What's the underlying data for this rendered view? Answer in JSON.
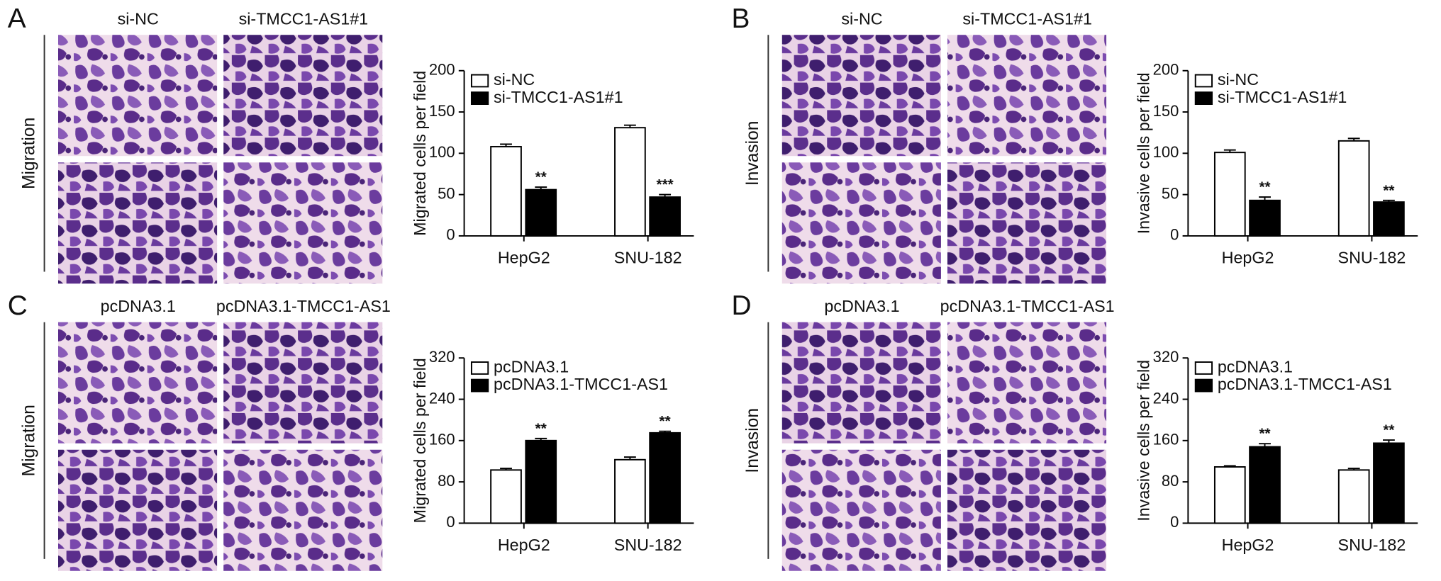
{
  "panels": [
    {
      "letter": "A",
      "image_columns": [
        "si-NC",
        "si-TMCC1-AS1#1"
      ],
      "row_label": "Migration"
    },
    {
      "letter": "B",
      "image_columns": [
        "si-NC",
        "si-TMCC1-AS1#1"
      ],
      "row_label": "Invasion"
    },
    {
      "letter": "C",
      "image_columns": [
        "pcDNA3.1",
        "pcDNA3.1-TMCC1-AS1"
      ],
      "row_label": "Migration"
    },
    {
      "letter": "D",
      "image_columns": [
        "pcDNA3.1",
        "pcDNA3.1-TMCC1-AS1"
      ],
      "row_label": "Invasion"
    }
  ],
  "chart_data": [
    {
      "type": "bar",
      "y_label": "Migrated cells per field",
      "categories": [
        "HepG2",
        "SNU-182"
      ],
      "ylim": [
        0,
        200
      ],
      "yticks": [
        0,
        50,
        100,
        150,
        200
      ],
      "series": [
        {
          "name": "si-NC",
          "color": "#ffffff",
          "values": [
            108,
            131
          ],
          "errors": [
            3,
            3
          ]
        },
        {
          "name": "si-TMCC1-AS1#1",
          "color": "#000000",
          "values": [
            56,
            47
          ],
          "errors": [
            3,
            3
          ],
          "significance": [
            "**",
            "***"
          ]
        }
      ]
    },
    {
      "type": "bar",
      "y_label": "Invasive cells per field",
      "categories": [
        "HepG2",
        "SNU-182"
      ],
      "ylim": [
        0,
        200
      ],
      "yticks": [
        0,
        50,
        100,
        150,
        200
      ],
      "series": [
        {
          "name": "si-NC",
          "color": "#ffffff",
          "values": [
            101,
            115
          ],
          "errors": [
            3,
            3
          ]
        },
        {
          "name": "si-TMCC1-AS1#1",
          "color": "#000000",
          "values": [
            43,
            41
          ],
          "errors": [
            4,
            2
          ],
          "significance": [
            "**",
            "**"
          ]
        }
      ]
    },
    {
      "type": "bar",
      "y_label": "Migrated cells per field",
      "categories": [
        "HepG2",
        "SNU-182"
      ],
      "ylim": [
        0,
        320
      ],
      "yticks": [
        0,
        80,
        160,
        240,
        320
      ],
      "series": [
        {
          "name": "pcDNA3.1",
          "color": "#ffffff",
          "values": [
            103,
            123
          ],
          "errors": [
            3,
            5
          ]
        },
        {
          "name": "pcDNA3.1-TMCC1-AS1",
          "color": "#000000",
          "values": [
            160,
            175
          ],
          "errors": [
            4,
            3
          ],
          "significance": [
            "**",
            "**"
          ]
        }
      ]
    },
    {
      "type": "bar",
      "y_label": "Invasive cells per field",
      "categories": [
        "HepG2",
        "SNU-182"
      ],
      "ylim": [
        0,
        320
      ],
      "yticks": [
        0,
        80,
        160,
        240,
        320
      ],
      "series": [
        {
          "name": "pcDNA3.1",
          "color": "#ffffff",
          "values": [
            109,
            103
          ],
          "errors": [
            2,
            3
          ]
        },
        {
          "name": "pcDNA3.1-TMCC1-AS1",
          "color": "#000000",
          "values": [
            148,
            155
          ],
          "errors": [
            6,
            6
          ],
          "significance": [
            "**",
            "**"
          ]
        }
      ]
    }
  ]
}
